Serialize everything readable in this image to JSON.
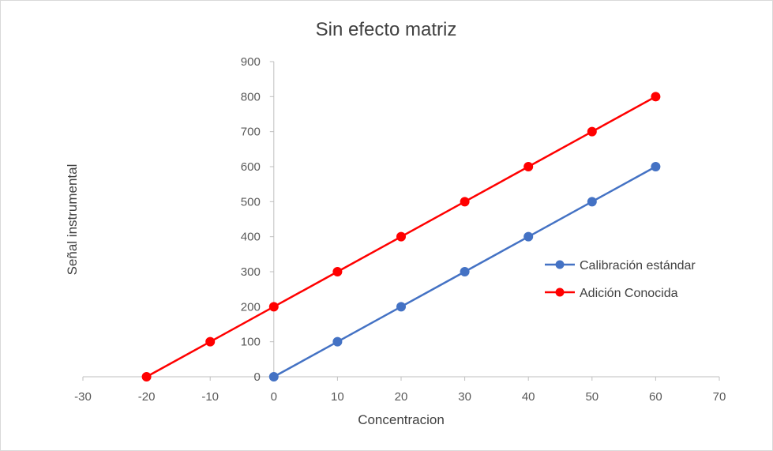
{
  "chart_data": {
    "type": "scatter",
    "title": "Sin efecto matriz",
    "xlabel": "Concentracion",
    "ylabel": "Señal instrumental",
    "xlim": [
      -30,
      70
    ],
    "ylim": [
      0,
      900
    ],
    "x_ticks": [
      "-30",
      "-20",
      "-10",
      "0",
      "10",
      "20",
      "30",
      "40",
      "50",
      "60",
      "70"
    ],
    "y_ticks": [
      "0",
      "100",
      "200",
      "300",
      "400",
      "500",
      "600",
      "700",
      "800",
      "900"
    ],
    "grid": false,
    "legend_position": "right",
    "series": [
      {
        "name": "Calibración estándar",
        "color": "#4472C4",
        "x": [
          0,
          10,
          20,
          30,
          40,
          50,
          60
        ],
        "y": [
          0,
          100,
          200,
          300,
          400,
          500,
          600
        ]
      },
      {
        "name": "Adición Conocida",
        "color": "#FF0000",
        "x": [
          -20,
          -10,
          0,
          10,
          20,
          30,
          40,
          50,
          60
        ],
        "y": [
          0,
          100,
          200,
          300,
          400,
          500,
          600,
          700,
          800
        ]
      }
    ]
  }
}
